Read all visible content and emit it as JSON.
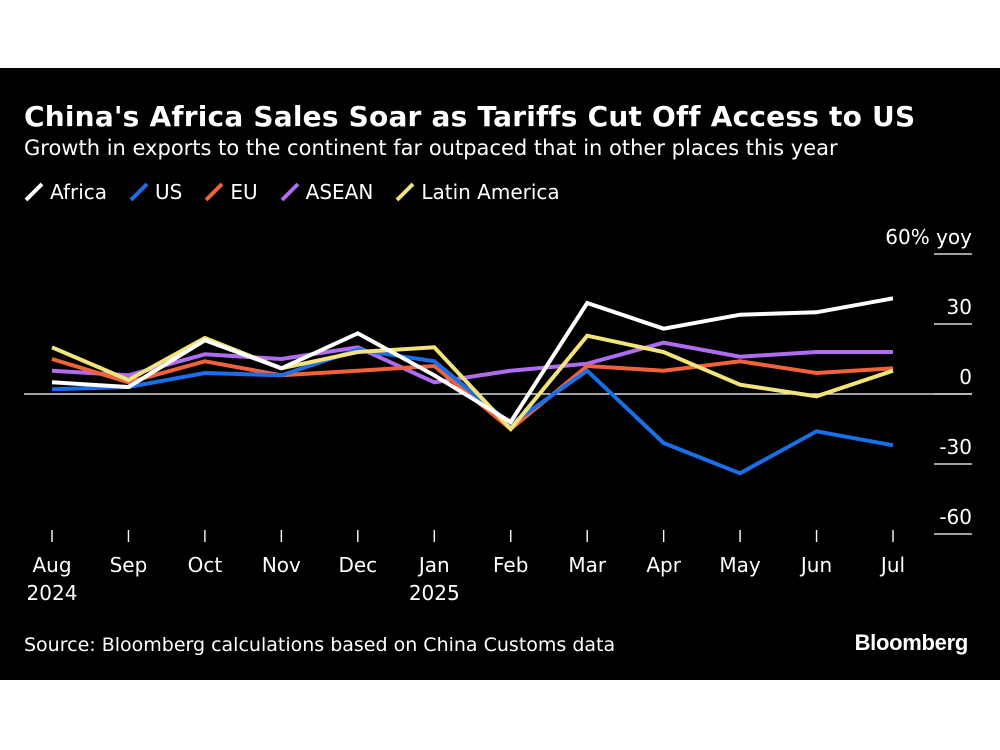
{
  "header": {
    "title": "China's Africa Sales Soar as Tariffs Cut Off Access to US",
    "subtitle": "Growth in exports to the continent far outpaced that in other places this year"
  },
  "footer": {
    "source": "Source: Bloomberg calculations based on China Customs data",
    "brand": "Bloomberg"
  },
  "chart_data": {
    "type": "line",
    "title": "China's Africa Sales Soar as Tariffs Cut Off Access to US",
    "subtitle": "Growth in exports to the continent far outpaced that in other places this year",
    "ylabel": "60% yoy",
    "ylim": [
      -60,
      60
    ],
    "yticks": [
      60,
      30,
      0,
      -30,
      -60
    ],
    "ytick_labels": [
      "60% yoy",
      "30",
      "0",
      "-30",
      "-60"
    ],
    "x_labels": [
      [
        "Aug",
        "2024"
      ],
      [
        "Sep",
        ""
      ],
      [
        "Oct",
        ""
      ],
      [
        "Nov",
        ""
      ],
      [
        "Dec",
        ""
      ],
      [
        "Jan",
        "2025"
      ],
      [
        "Feb",
        ""
      ],
      [
        "Mar",
        ""
      ],
      [
        "Apr",
        ""
      ],
      [
        "May",
        ""
      ],
      [
        "Jun",
        ""
      ],
      [
        "Jul",
        ""
      ]
    ],
    "legend_position": "top-left",
    "grid": false,
    "series": [
      {
        "name": "ASEAN",
        "color": "#b06cf0",
        "values": [
          10,
          8,
          17,
          15,
          20,
          5,
          10,
          13,
          22,
          16,
          18,
          18
        ]
      },
      {
        "name": "EU",
        "color": "#f0623a",
        "values": [
          15,
          5,
          14,
          8,
          10,
          12,
          -15,
          12,
          10,
          14,
          9,
          11
        ]
      },
      {
        "name": "US",
        "color": "#1a6fe8",
        "values": [
          2,
          3,
          9,
          8,
          19,
          14,
          -13,
          10,
          -21,
          -34,
          -16,
          -22
        ]
      },
      {
        "name": "Latin America",
        "color": "#f2e47a",
        "values": [
          20,
          6,
          24,
          11,
          18,
          20,
          -15,
          25,
          18,
          4,
          -1,
          10
        ]
      },
      {
        "name": "Africa",
        "color": "#ffffff",
        "values": [
          5,
          3,
          23,
          11,
          26,
          8,
          -12,
          39,
          28,
          34,
          35,
          41
        ]
      }
    ],
    "legend_order": [
      "Africa",
      "US",
      "EU",
      "ASEAN",
      "Latin America"
    ]
  }
}
